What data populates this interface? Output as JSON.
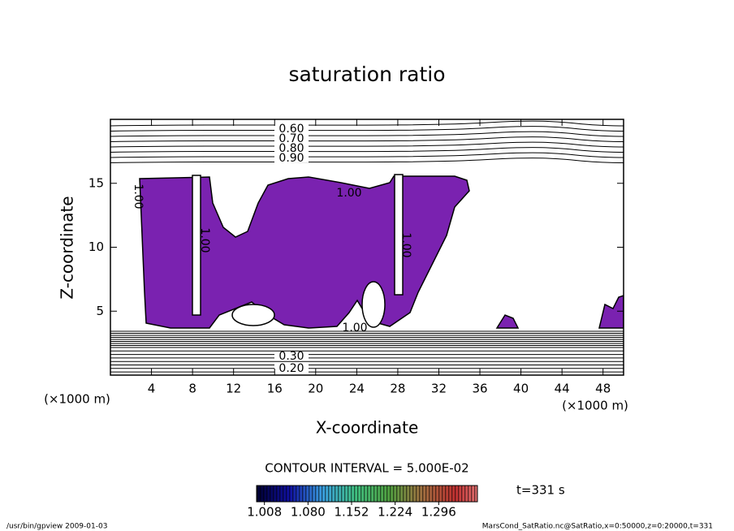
{
  "chart_data": {
    "type": "contour",
    "title": "saturation ratio",
    "xlabel": "X-coordinate",
    "ylabel": "Z-coordinate",
    "x_unit": "(×1000 m)",
    "xlim": [
      0,
      50
    ],
    "ylim": [
      0,
      20
    ],
    "xticks": [
      4,
      8,
      12,
      16,
      20,
      24,
      28,
      32,
      36,
      40,
      44,
      48
    ],
    "yticks": [
      5,
      10,
      15
    ],
    "upper_contour_labels": [
      {
        "value": 0.6,
        "label": "0.60"
      },
      {
        "value": 0.7,
        "label": "0.70"
      },
      {
        "value": 0.8,
        "label": "0.80"
      },
      {
        "value": 0.9,
        "label": "0.90"
      }
    ],
    "lower_contour_labels": [
      {
        "value": 0.3,
        "label": "0.30"
      },
      {
        "value": 0.2,
        "label": "0.20"
      }
    ],
    "saturation_label": {
      "value": 1,
      "label": "1.00"
    },
    "region_color": "#7a22b0",
    "contour_interval": "CONTOUR INTERVAL = 5.000E-02",
    "clim": [
      0.995,
      1.36
    ],
    "cticks": [
      1.008,
      {
        "value": 1.08,
        "label": "1.080"
      },
      1.152,
      1.224,
      1.296
    ],
    "time": "t=331 s",
    "footer_left": "/usr/bin/gpview   2009-01-03",
    "footer_right": "MarsCond_SatRatio.nc@SatRatio,x=0:50000,z=0:20000,t=331"
  }
}
